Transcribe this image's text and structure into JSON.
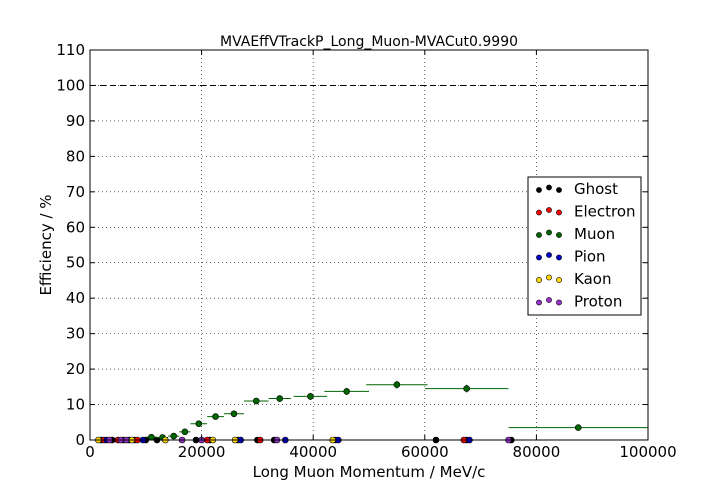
{
  "chart_data": {
    "type": "scatter",
    "title": "MVAEffVTrackP_Long_Muon-MVACut0.9990",
    "xlabel": "Long Muon Momentum / MeV/c",
    "ylabel": "Efficiency / %",
    "xlim": [
      0,
      100000
    ],
    "ylim": [
      0,
      110
    ],
    "xticks": [
      0,
      20000,
      40000,
      60000,
      80000,
      100000
    ],
    "yticks": [
      0,
      10,
      20,
      30,
      40,
      50,
      60,
      70,
      80,
      90,
      100,
      110
    ],
    "grid": true,
    "reference_line": 100,
    "legend_position": "right",
    "series": [
      {
        "name": "Ghost",
        "color": "#000000",
        "points": [
          [
            2000,
            0
          ],
          [
            4000,
            0
          ],
          [
            6000,
            0
          ],
          [
            8000,
            0
          ],
          [
            10000,
            0
          ],
          [
            12000,
            0
          ],
          [
            19000,
            0
          ],
          [
            21500,
            0
          ],
          [
            26500,
            0
          ],
          [
            30000,
            0
          ],
          [
            33000,
            0
          ],
          [
            44000,
            0
          ],
          [
            62000,
            0
          ],
          [
            67500,
            0
          ],
          [
            75500,
            0
          ]
        ]
      },
      {
        "name": "Electron",
        "color": "#ff0000",
        "points": [
          [
            2500,
            0
          ],
          [
            5000,
            0
          ],
          [
            8500,
            0
          ],
          [
            21000,
            0
          ],
          [
            30500,
            0
          ],
          [
            67000,
            0
          ]
        ]
      },
      {
        "name": "Muon",
        "color": "#006400",
        "points": [
          {
            "x": 11000,
            "y": 0.8,
            "xerr": 1000,
            "yerr": 0.3
          },
          {
            "x": 13000,
            "y": 0.7,
            "xerr": 1000,
            "yerr": 0.3
          },
          {
            "x": 15000,
            "y": 1.1,
            "xerr": 1000,
            "yerr": 0.4
          },
          {
            "x": 17000,
            "y": 2.3,
            "xerr": 1000,
            "yerr": 0.5
          },
          {
            "x": 19500,
            "y": 4.6,
            "xerr": 1500,
            "yerr": 0.7
          },
          {
            "x": 22500,
            "y": 6.6,
            "xerr": 1500,
            "yerr": 0.7
          },
          {
            "x": 25800,
            "y": 7.4,
            "xerr": 1800,
            "yerr": 0.8
          },
          {
            "x": 29800,
            "y": 11.0,
            "xerr": 2200,
            "yerr": 0.9
          },
          {
            "x": 34000,
            "y": 11.7,
            "xerr": 2000,
            "yerr": 0.9
          },
          {
            "x": 39500,
            "y": 12.3,
            "xerr": 3000,
            "yerr": 1.0
          },
          {
            "x": 46000,
            "y": 13.7,
            "xerr": 4000,
            "yerr": 1.0
          },
          {
            "x": 55000,
            "y": 15.6,
            "xerr": 5500,
            "yerr": 1.1
          },
          {
            "x": 67500,
            "y": 14.5,
            "xerr": 7500,
            "yerr": 1.1
          },
          {
            "x": 87500,
            "y": 3.5,
            "xerr": 12500,
            "yerr": 0.5
          }
        ]
      },
      {
        "name": "Pion",
        "color": "#0000cd",
        "points": [
          [
            3000,
            0
          ],
          [
            7000,
            0
          ],
          [
            9500,
            0
          ],
          [
            27000,
            0
          ],
          [
            35000,
            0
          ],
          [
            44500,
            0
          ],
          [
            68000,
            0
          ]
        ]
      },
      {
        "name": "Kaon",
        "color": "#ffd700",
        "points": [
          [
            1500,
            0
          ],
          [
            7500,
            0
          ],
          [
            13500,
            0
          ],
          [
            22000,
            0
          ],
          [
            26000,
            0
          ],
          [
            43500,
            0
          ]
        ]
      },
      {
        "name": "Proton",
        "color": "#9932cc",
        "points": [
          [
            3500,
            0
          ],
          [
            5500,
            0
          ],
          [
            6500,
            0
          ],
          [
            16500,
            0
          ],
          [
            20000,
            0
          ],
          [
            33500,
            0
          ],
          [
            75000,
            0
          ]
        ]
      }
    ]
  }
}
